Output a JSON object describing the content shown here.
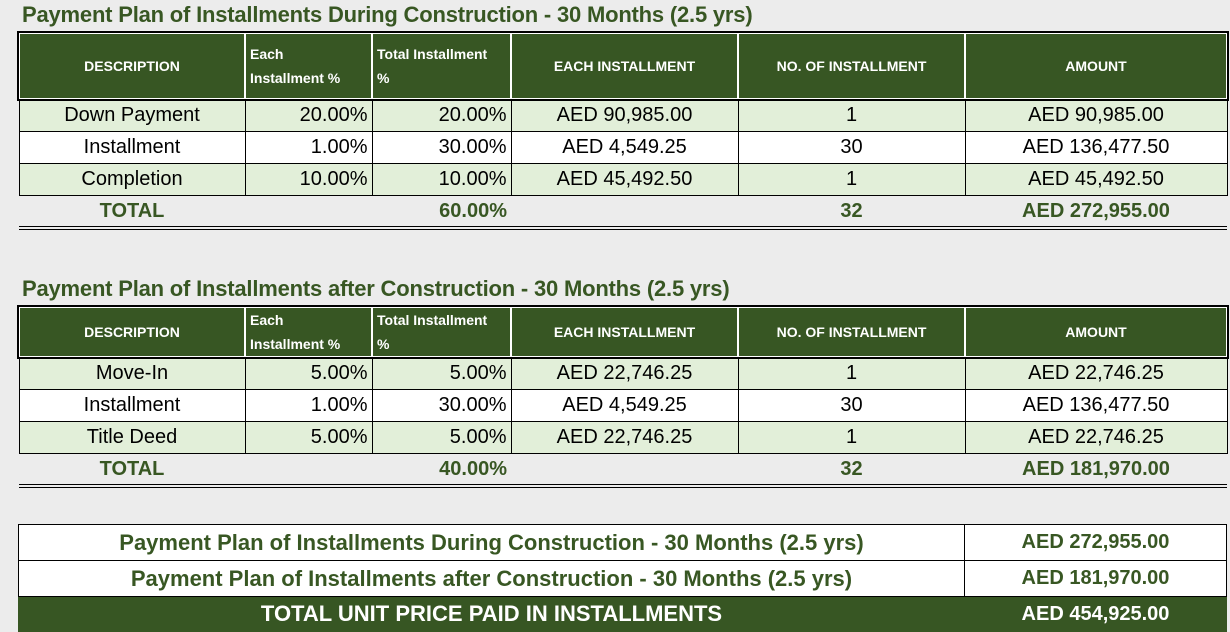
{
  "plan1": {
    "title": "Payment Plan of Installments During Construction - 30 Months (2.5 yrs)",
    "headers": {
      "description": "DESCRIPTION",
      "each_pct_line1": "Each",
      "each_pct_line2": "Installment %",
      "total_pct_line1": "Total Installment",
      "total_pct_line2": "%",
      "each_installment": "EACH INSTALLMENT",
      "no_of_installment": "NO. OF INSTALLMENT",
      "amount": "AMOUNT"
    },
    "rows": [
      {
        "description": "Down Payment",
        "each_pct": "20.00%",
        "total_pct": "20.00%",
        "each_installment": "AED 90,985.00",
        "count": "1",
        "amount": "AED 90,985.00"
      },
      {
        "description": "Installment",
        "each_pct": "1.00%",
        "total_pct": "30.00%",
        "each_installment": "AED 4,549.25",
        "count": "30",
        "amount": "AED 136,477.50"
      },
      {
        "description": "Completion",
        "each_pct": "10.00%",
        "total_pct": "10.00%",
        "each_installment": "AED 45,492.50",
        "count": "1",
        "amount": "AED 45,492.50"
      }
    ],
    "total": {
      "label": "TOTAL",
      "total_pct": "60.00%",
      "count": "32",
      "amount": "AED 272,955.00"
    }
  },
  "plan2": {
    "title": "Payment Plan of Installments after Construction - 30 Months (2.5 yrs)",
    "headers": {
      "description": "DESCRIPTION",
      "each_pct_line1": "Each",
      "each_pct_line2": "Installment %",
      "total_pct_line1": "Total Installment",
      "total_pct_line2": "%",
      "each_installment": "EACH INSTALLMENT",
      "no_of_installment": "NO. OF INSTALLMENT",
      "amount": "AMOUNT"
    },
    "rows": [
      {
        "description": "Move-In",
        "each_pct": "5.00%",
        "total_pct": "5.00%",
        "each_installment": "AED 22,746.25",
        "count": "1",
        "amount": "AED 22,746.25"
      },
      {
        "description": "Installment",
        "each_pct": "1.00%",
        "total_pct": "30.00%",
        "each_installment": "AED 4,549.25",
        "count": "30",
        "amount": "AED 136,477.50"
      },
      {
        "description": "Title Deed",
        "each_pct": "5.00%",
        "total_pct": "5.00%",
        "each_installment": "AED 22,746.25",
        "count": "1",
        "amount": "AED 22,746.25"
      }
    ],
    "total": {
      "label": "TOTAL",
      "total_pct": "40.00%",
      "count": "32",
      "amount": "AED 181,970.00"
    }
  },
  "summary": {
    "rows": [
      {
        "label": "Payment Plan of Installments During Construction - 30 Months (2.5 yrs)",
        "amount": "AED 272,955.00"
      },
      {
        "label": "Payment Plan of Installments after Construction - 30 Months (2.5 yrs)",
        "amount": "AED 181,970.00"
      }
    ],
    "grand_label": "TOTAL UNIT PRICE PAID IN INSTALLMENTS",
    "grand_amount": "AED 454,925.00"
  },
  "colors": {
    "header_green": "#375623",
    "title_green": "#385723",
    "row_light": "#e2efd9"
  }
}
